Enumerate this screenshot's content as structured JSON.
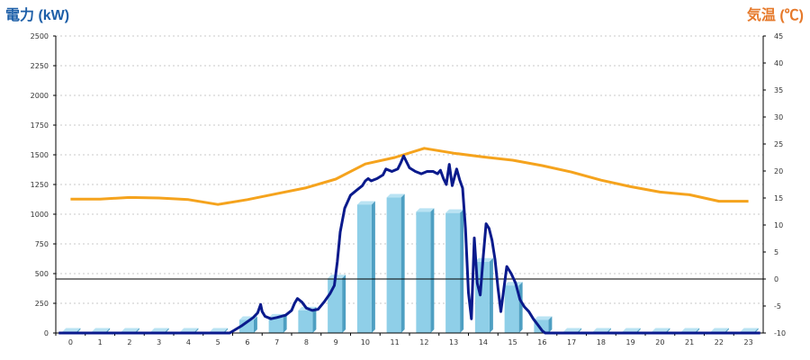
{
  "chart_data": {
    "type": "bar",
    "left_axis_title": "電力 (kW)",
    "right_axis_title": "気温 (℃)",
    "categories": [
      "0",
      "1",
      "2",
      "3",
      "4",
      "5",
      "6",
      "7",
      "8",
      "9",
      "10",
      "11",
      "12",
      "13",
      "14",
      "15",
      "16",
      "17",
      "18",
      "19",
      "20",
      "21",
      "22",
      "23"
    ],
    "y_left": {
      "min": 0,
      "max": 2500,
      "ticks": [
        0,
        250,
        500,
        750,
        1000,
        1250,
        1500,
        1750,
        2000,
        2250,
        2500
      ]
    },
    "y_right": {
      "min": -10,
      "max": 45,
      "ticks": [
        -10,
        -5,
        0,
        5,
        10,
        15,
        20,
        25,
        30,
        35,
        40,
        45
      ]
    },
    "grid": true,
    "series": [
      {
        "kind": "bar",
        "axis": "left",
        "values": [
          0,
          0,
          0,
          0,
          0,
          0,
          110,
          130,
          190,
          460,
          1080,
          1140,
          1020,
          1010,
          600,
          400,
          110,
          0,
          0,
          0,
          0,
          0,
          0,
          0
        ]
      },
      {
        "kind": "line",
        "axis": "left",
        "points": [
          [
            -0.4,
            0
          ],
          [
            5.4,
            0
          ],
          [
            5.8,
            60
          ],
          [
            6.2,
            130
          ],
          [
            6.35,
            170
          ],
          [
            6.45,
            240
          ],
          [
            6.5,
            180
          ],
          [
            6.6,
            140
          ],
          [
            6.8,
            120
          ],
          [
            7.0,
            130
          ],
          [
            7.3,
            150
          ],
          [
            7.5,
            190
          ],
          [
            7.6,
            250
          ],
          [
            7.7,
            290
          ],
          [
            7.85,
            260
          ],
          [
            8.0,
            210
          ],
          [
            8.2,
            190
          ],
          [
            8.4,
            200
          ],
          [
            8.6,
            260
          ],
          [
            8.8,
            330
          ],
          [
            8.95,
            400
          ],
          [
            9.05,
            600
          ],
          [
            9.15,
            850
          ],
          [
            9.3,
            1050
          ],
          [
            9.5,
            1160
          ],
          [
            9.7,
            1200
          ],
          [
            9.9,
            1240
          ],
          [
            10.0,
            1280
          ],
          [
            10.1,
            1300
          ],
          [
            10.2,
            1280
          ],
          [
            10.4,
            1300
          ],
          [
            10.6,
            1330
          ],
          [
            10.7,
            1380
          ],
          [
            10.9,
            1360
          ],
          [
            11.1,
            1380
          ],
          [
            11.2,
            1430
          ],
          [
            11.3,
            1490
          ],
          [
            11.4,
            1440
          ],
          [
            11.5,
            1390
          ],
          [
            11.7,
            1360
          ],
          [
            11.9,
            1340
          ],
          [
            12.1,
            1360
          ],
          [
            12.3,
            1360
          ],
          [
            12.45,
            1340
          ],
          [
            12.55,
            1370
          ],
          [
            12.65,
            1300
          ],
          [
            12.75,
            1250
          ],
          [
            12.85,
            1420
          ],
          [
            12.95,
            1240
          ],
          [
            13.1,
            1380
          ],
          [
            13.2,
            1290
          ],
          [
            13.3,
            1220
          ],
          [
            13.4,
            880
          ],
          [
            13.5,
            340
          ],
          [
            13.6,
            120
          ],
          [
            13.7,
            800
          ],
          [
            13.8,
            420
          ],
          [
            13.9,
            320
          ],
          [
            14.0,
            640
          ],
          [
            14.1,
            920
          ],
          [
            14.2,
            880
          ],
          [
            14.3,
            780
          ],
          [
            14.4,
            620
          ],
          [
            14.5,
            380
          ],
          [
            14.6,
            180
          ],
          [
            14.7,
            370
          ],
          [
            14.8,
            560
          ],
          [
            14.95,
            500
          ],
          [
            15.1,
            420
          ],
          [
            15.25,
            280
          ],
          [
            15.4,
            220
          ],
          [
            15.55,
            180
          ],
          [
            15.7,
            120
          ],
          [
            15.85,
            70
          ],
          [
            16.0,
            20
          ],
          [
            16.1,
            0
          ],
          [
            23.4,
            0
          ]
        ]
      },
      {
        "kind": "line",
        "axis": "right",
        "points": [
          [
            0,
            14.8
          ],
          [
            1,
            14.8
          ],
          [
            2,
            15.1
          ],
          [
            3,
            15.0
          ],
          [
            4,
            14.7
          ],
          [
            5,
            13.8
          ],
          [
            6,
            14.7
          ],
          [
            7,
            15.8
          ],
          [
            8,
            16.9
          ],
          [
            9,
            18.5
          ],
          [
            10,
            21.3
          ],
          [
            11,
            22.5
          ],
          [
            12,
            24.2
          ],
          [
            13,
            23.3
          ],
          [
            14,
            22.6
          ],
          [
            15,
            22.0
          ],
          [
            16,
            21.0
          ],
          [
            17,
            19.8
          ],
          [
            18,
            18.3
          ],
          [
            19,
            17.1
          ],
          [
            20,
            16.1
          ],
          [
            21,
            15.6
          ],
          [
            22,
            14.4
          ],
          [
            23,
            14.4
          ]
        ]
      }
    ]
  },
  "colors": {
    "left_title": "#1d5fa8",
    "right_title": "#e6792a",
    "bar_front": "#8fcfe8",
    "bar_side": "#4e9fc2",
    "bar_top": "#b9e3f3",
    "power_line": "#0a1a8c",
    "temp_line": "#f5a31d",
    "grid": "#c8c8c8",
    "axis": "#000000"
  }
}
